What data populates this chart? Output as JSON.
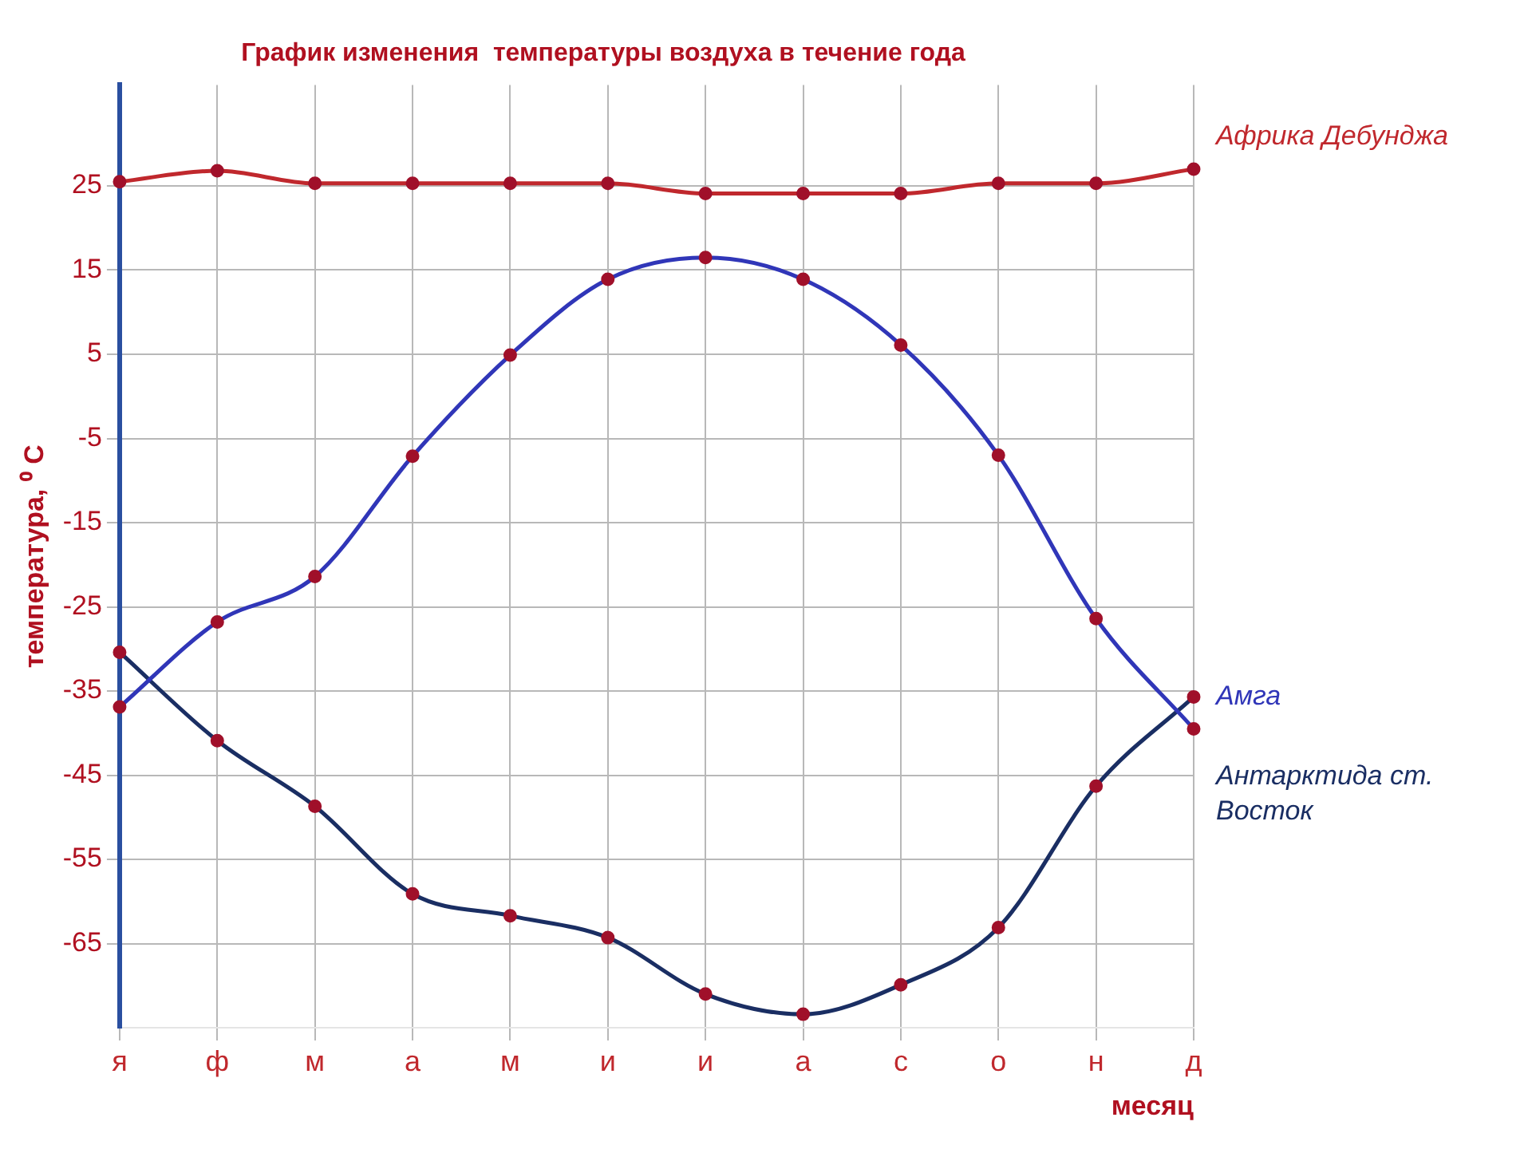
{
  "chart_data": {
    "type": "line",
    "title": "График изменения  температуры воздуха в течение года",
    "xlabel": "месяц",
    "ylabel": "температура, ⁰ С",
    "categories": [
      "я",
      "ф",
      "м",
      "а",
      "м",
      "и",
      "и",
      "а",
      "с",
      "о",
      "н",
      "д"
    ],
    "series": [
      {
        "name": "Африка Дебунджа",
        "color": "#c0282d",
        "values": [
          25.5,
          26.8,
          25.3,
          25.3,
          25.3,
          25.3,
          24.1,
          24.1,
          24.1,
          25.3,
          25.3,
          27
        ]
      },
      {
        "name": "Амга",
        "color": "#3036b8",
        "values": [
          -36.9,
          -26.8,
          -21.4,
          -7.1,
          4.9,
          13.9,
          16.5,
          13.9,
          6.1,
          -7,
          -26.4,
          -39.5
        ]
      },
      {
        "name": "Антарктида ст. Восток",
        "color": "#1a2e63",
        "values": [
          -30.4,
          -40.9,
          -48.7,
          -59.1,
          -61.7,
          -64.3,
          -71,
          -73.4,
          -69.9,
          -63.1,
          -46.3,
          -35.7
        ]
      }
    ],
    "ylim": [
      -75,
      37
    ],
    "yticks": [
      25,
      15,
      5,
      -5,
      -15,
      -25,
      -35,
      -45,
      -55,
      -65
    ],
    "grid": true,
    "legend": false,
    "marker": "circle",
    "line_style": "solid"
  }
}
